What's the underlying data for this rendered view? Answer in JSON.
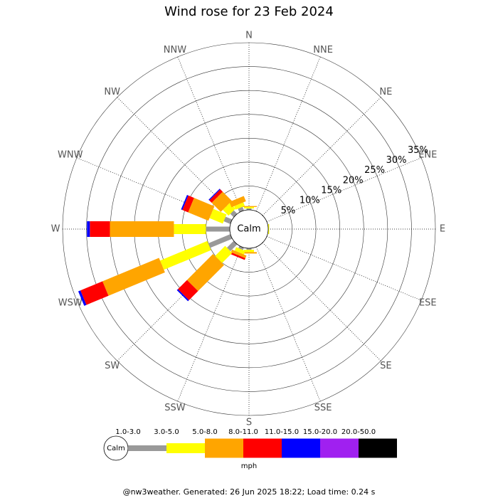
{
  "chart_data": {
    "type": "windrose",
    "title": "Wind rose for 23 Feb 2024",
    "calm_label": "Calm",
    "unit": "mph",
    "footer": "@nw3weather. Generated: 26 Jun 2025 18:22; Load time: 0.24 s",
    "directions": [
      "N",
      "NNE",
      "NE",
      "ENE",
      "E",
      "ESE",
      "SE",
      "SSE",
      "S",
      "SSW",
      "SW",
      "WSW",
      "W",
      "WNW",
      "NW",
      "NNW"
    ],
    "rlim": [
      0,
      35
    ],
    "rticks": [
      {
        "value": 5,
        "label": "5%"
      },
      {
        "value": 10,
        "label": "10%"
      },
      {
        "value": 15,
        "label": "15%"
      },
      {
        "value": 20,
        "label": "20%"
      },
      {
        "value": 25,
        "label": "25%"
      },
      {
        "value": 30,
        "label": "30%"
      },
      {
        "value": 35,
        "label": "35%"
      }
    ],
    "series": [
      {
        "name": "1.0-3.0",
        "color": "#999999",
        "values": [
          0.3,
          0,
          0,
          0,
          0,
          0,
          0,
          0,
          0.3,
          0.5,
          2,
          5,
          5,
          1.5,
          1,
          0.8
        ]
      },
      {
        "name": "3.0-5.0",
        "color": "#ffff00",
        "values": [
          0.3,
          0,
          0,
          0,
          0.2,
          0,
          0,
          0,
          0.5,
          0.8,
          3,
          10.7,
          6.7,
          3,
          1.7,
          0.8
        ]
      },
      {
        "name": "5.0-8.0",
        "color": "#ffa500",
        "values": [
          0.2,
          0,
          0,
          0,
          0,
          0,
          0,
          0,
          0.3,
          0.6,
          7.7,
          12.8,
          13.4,
          4.6,
          2.7,
          1.2
        ]
      },
      {
        "name": "8.0-11.0",
        "color": "#ff0000",
        "values": [
          0,
          0,
          0,
          0,
          0,
          0,
          0,
          0,
          0,
          0.4,
          2.7,
          5,
          4.2,
          1.3,
          0.7,
          0
        ]
      },
      {
        "name": "11.0-15.0",
        "color": "#0000ff",
        "values": [
          0,
          0,
          0,
          0,
          0,
          0,
          0,
          0,
          0,
          0,
          0.3,
          0.5,
          0.6,
          0.3,
          0.2,
          0
        ]
      },
      {
        "name": "15.0-20.0",
        "color": "#a020f0",
        "values": [
          0,
          0,
          0,
          0,
          0,
          0,
          0,
          0,
          0,
          0,
          0,
          0,
          0,
          0,
          0,
          0
        ]
      },
      {
        "name": "20.0-50.0",
        "color": "#000000",
        "values": [
          0,
          0,
          0,
          0,
          0,
          0,
          0,
          0,
          0,
          0,
          0,
          0,
          0,
          0,
          0,
          0
        ]
      }
    ]
  }
}
